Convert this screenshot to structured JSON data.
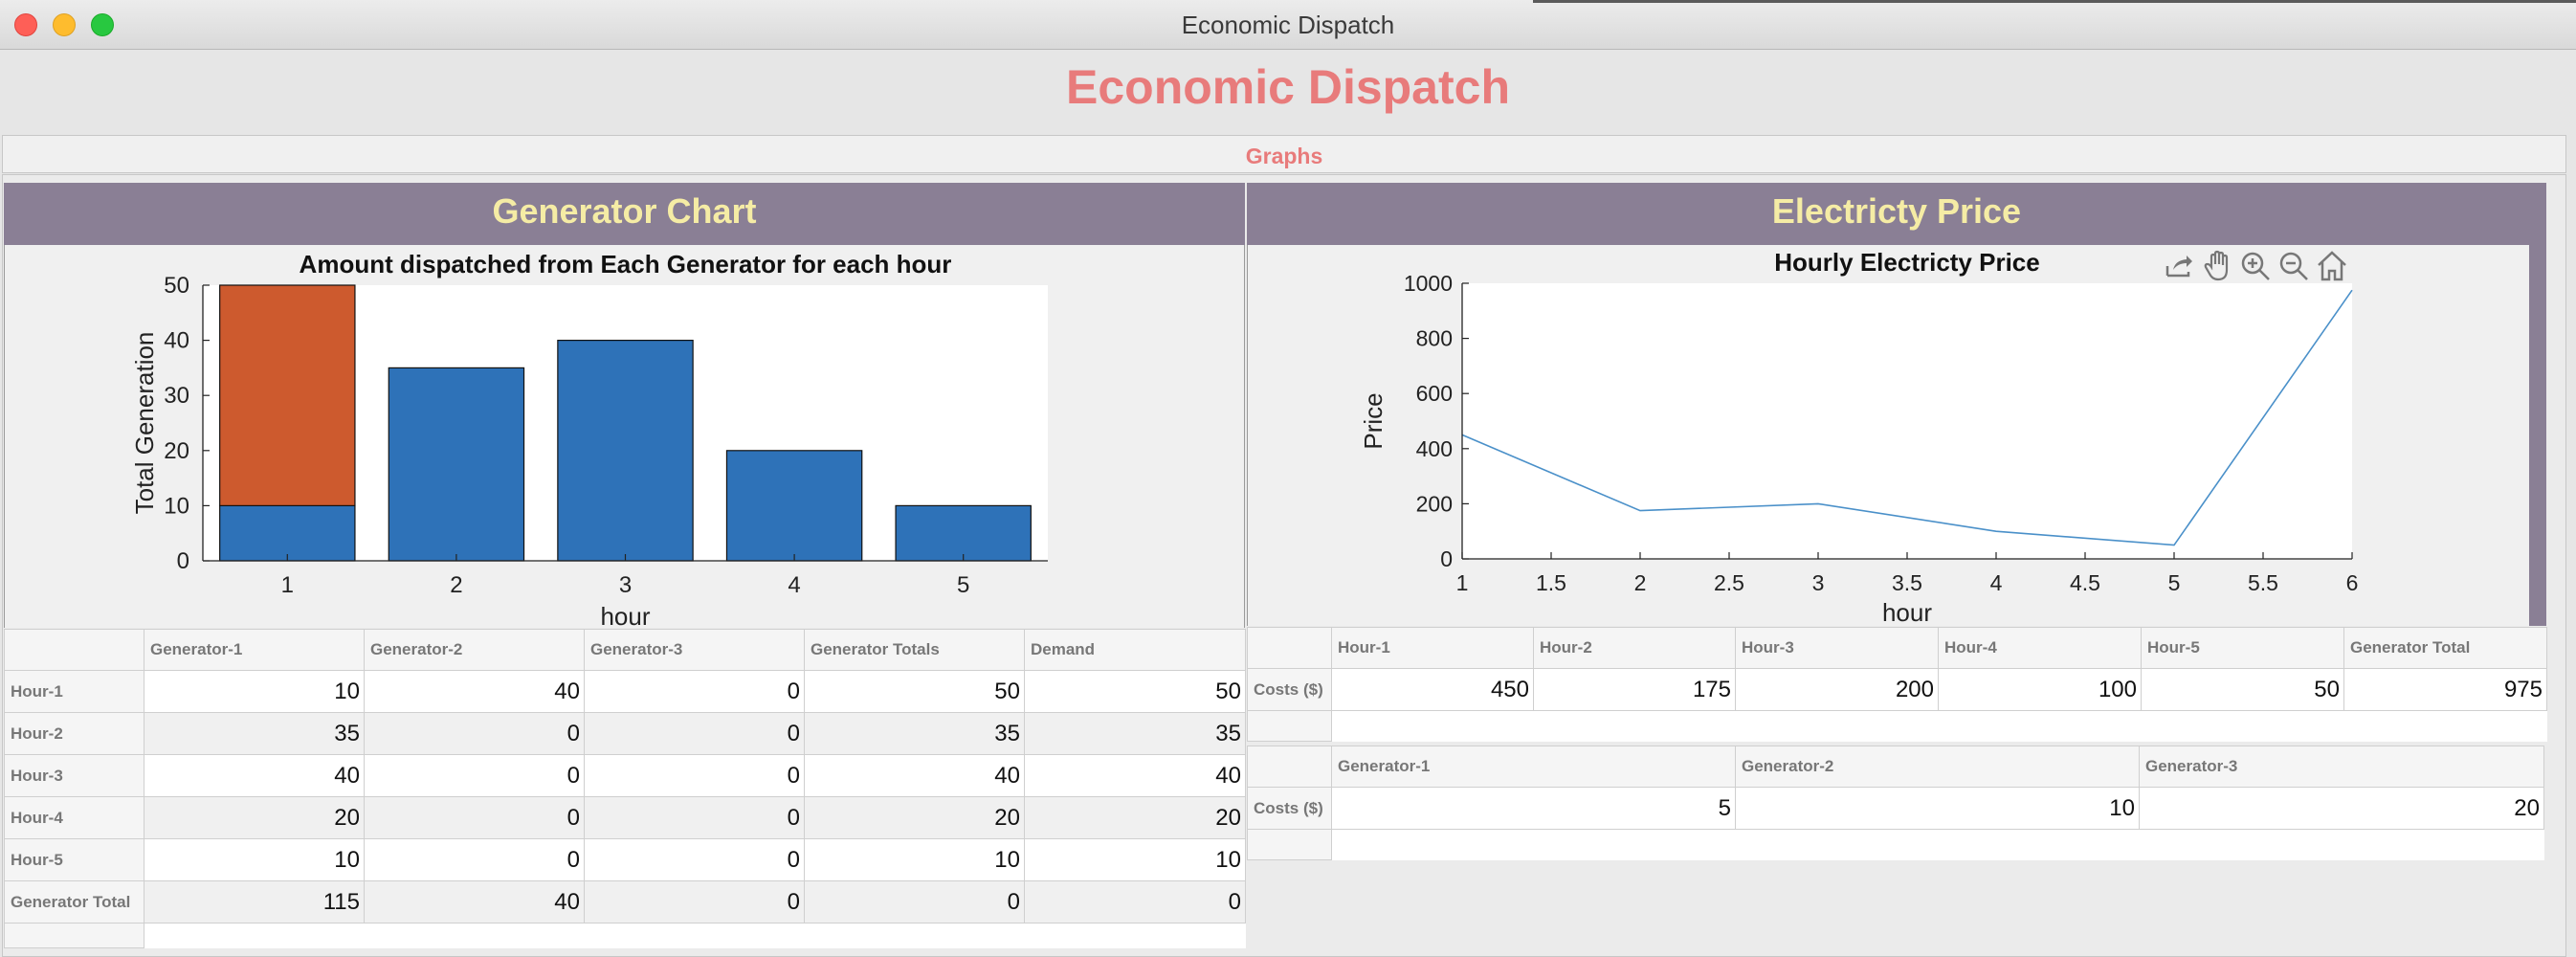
{
  "window": {
    "title": "Economic Dispatch"
  },
  "app": {
    "title": "Economic Dispatch"
  },
  "tabs": [
    {
      "label": "Graphs"
    }
  ],
  "colors": {
    "accent": "#e87b7b",
    "panel_header": "#8a7f95",
    "panel_header_text": "#f5eca5",
    "bar_blue": "#2e72b8",
    "bar_orange": "#cd5a2e",
    "line_blue": "#4a90c9"
  },
  "left_panel": {
    "title": "Generator Chart",
    "chart_data": {
      "type": "bar",
      "stacked": true,
      "title": "Amount dispatched from Each Generator for each hour",
      "xlabel": "hour",
      "ylabel": "Total Generation",
      "categories": [
        "1",
        "2",
        "3",
        "4",
        "5"
      ],
      "ylim": [
        0,
        50
      ],
      "yticks": [
        "0",
        "10",
        "20",
        "30",
        "40",
        "50"
      ],
      "series": [
        {
          "values": [
            10,
            35,
            40,
            20,
            10
          ],
          "color": "#2e72b8"
        },
        {
          "values": [
            40,
            0,
            0,
            0,
            0
          ],
          "color": "#cd5a2e"
        }
      ]
    },
    "table": {
      "columns": [
        "Generator-1",
        "Generator-2",
        "Generator-3",
        "Generator Totals",
        "Demand"
      ],
      "rows": [
        {
          "label": "Hour-1",
          "values": [
            "10",
            "40",
            "0",
            "50",
            "50"
          ]
        },
        {
          "label": "Hour-2",
          "values": [
            "35",
            "0",
            "0",
            "35",
            "35"
          ]
        },
        {
          "label": "Hour-3",
          "values": [
            "40",
            "0",
            "0",
            "40",
            "40"
          ]
        },
        {
          "label": "Hour-4",
          "values": [
            "20",
            "0",
            "0",
            "20",
            "20"
          ]
        },
        {
          "label": "Hour-5",
          "values": [
            "10",
            "0",
            "0",
            "10",
            "10"
          ]
        },
        {
          "label": "Generator Total",
          "values": [
            "115",
            "40",
            "0",
            "0",
            "0"
          ]
        }
      ]
    }
  },
  "right_panel": {
    "title": "Electricty Price",
    "toolbar_icons": [
      "export-icon",
      "pan-hand-icon",
      "zoom-in-icon",
      "zoom-out-icon",
      "home-icon"
    ],
    "chart_data": {
      "type": "line",
      "title": "Hourly Electricty Price",
      "xlabel": "hour",
      "ylabel": "Price",
      "x": [
        1,
        2,
        3,
        4,
        5,
        6
      ],
      "xlim": [
        1,
        6
      ],
      "ylim": [
        0,
        1000
      ],
      "xticks": [
        "1",
        "1.5",
        "2",
        "2.5",
        "3",
        "3.5",
        "4",
        "4.5",
        "5",
        "5.5",
        "6"
      ],
      "yticks": [
        "0",
        "200",
        "400",
        "600",
        "800",
        "1000"
      ],
      "series": [
        {
          "values": [
            450,
            175,
            200,
            100,
            50,
            975
          ],
          "color": "#4a90c9"
        }
      ]
    },
    "hour_costs_table": {
      "columns": [
        "Hour-1",
        "Hour-2",
        "Hour-3",
        "Hour-4",
        "Hour-5",
        "Generator Total"
      ],
      "row_label": "Costs ($)",
      "values": [
        "450",
        "175",
        "200",
        "100",
        "50",
        "975"
      ]
    },
    "gen_costs_table": {
      "columns": [
        "Generator-1",
        "Generator-2",
        "Generator-3"
      ],
      "row_label": "Costs ($)",
      "values": [
        "5",
        "10",
        "20"
      ]
    }
  }
}
